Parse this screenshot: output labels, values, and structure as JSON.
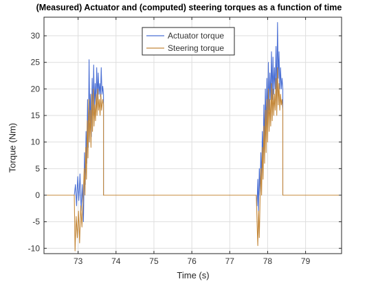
{
  "chart_data": {
    "type": "line",
    "title": "(Measured) Actuator and (computed) steering torques as a function of time",
    "xlabel": "Time (s)",
    "ylabel": "Torque (Nm)",
    "xlim": [
      72.1,
      79.95
    ],
    "ylim": [
      -11,
      33.5
    ],
    "xticks": [
      73,
      74,
      75,
      76,
      77,
      78,
      79
    ],
    "yticks": [
      -10,
      -5,
      0,
      5,
      10,
      15,
      20,
      25,
      30
    ],
    "grid": true,
    "legend_position": "top-center",
    "series": [
      {
        "name": "Actuator torque",
        "color": "#4a6fd4",
        "points": [
          [
            72.1,
            0
          ],
          [
            72.9,
            0
          ],
          [
            72.93,
            2
          ],
          [
            72.96,
            -2
          ],
          [
            72.99,
            3.5
          ],
          [
            73.02,
            -1
          ],
          [
            73.05,
            4
          ],
          [
            73.08,
            -3
          ],
          [
            73.11,
            2
          ],
          [
            73.14,
            -5
          ],
          [
            73.17,
            8
          ],
          [
            73.19,
            2
          ],
          [
            73.21,
            12
          ],
          [
            73.23,
            6
          ],
          [
            73.25,
            18
          ],
          [
            73.27,
            9
          ],
          [
            73.29,
            25.5
          ],
          [
            73.31,
            14
          ],
          [
            73.33,
            19
          ],
          [
            73.35,
            11
          ],
          [
            73.37,
            22
          ],
          [
            73.39,
            15
          ],
          [
            73.41,
            24.5
          ],
          [
            73.43,
            16
          ],
          [
            73.45,
            21
          ],
          [
            73.47,
            17
          ],
          [
            73.49,
            24
          ],
          [
            73.51,
            18
          ],
          [
            73.53,
            23
          ],
          [
            73.55,
            19
          ],
          [
            73.57,
            21
          ],
          [
            73.59,
            18.5
          ],
          [
            73.61,
            24
          ],
          [
            73.63,
            19
          ],
          [
            73.65,
            20.5
          ],
          [
            73.67,
            19
          ],
          [
            73.67,
            0
          ],
          [
            77.7,
            0
          ],
          [
            77.72,
            -2
          ],
          [
            77.74,
            3
          ],
          [
            77.76,
            -3
          ],
          [
            77.78,
            5
          ],
          [
            77.8,
            0
          ],
          [
            77.82,
            8
          ],
          [
            77.84,
            3
          ],
          [
            77.86,
            12
          ],
          [
            77.88,
            6
          ],
          [
            77.9,
            17
          ],
          [
            77.92,
            10
          ],
          [
            77.94,
            20
          ],
          [
            77.96,
            12
          ],
          [
            77.98,
            22
          ],
          [
            78.0,
            14
          ],
          [
            78.02,
            25
          ],
          [
            78.04,
            16
          ],
          [
            78.06,
            23
          ],
          [
            78.08,
            18
          ],
          [
            78.1,
            27
          ],
          [
            78.12,
            18
          ],
          [
            78.14,
            26
          ],
          [
            78.16,
            19
          ],
          [
            78.18,
            24
          ],
          [
            78.2,
            20
          ],
          [
            78.22,
            28
          ],
          [
            78.24,
            19
          ],
          [
            78.26,
            32.5
          ],
          [
            78.28,
            22
          ],
          [
            78.3,
            27
          ],
          [
            78.32,
            20
          ],
          [
            78.34,
            24
          ],
          [
            78.36,
            20
          ],
          [
            78.38,
            22
          ],
          [
            78.4,
            20
          ],
          [
            78.4,
            0
          ],
          [
            79.95,
            0
          ]
        ]
      },
      {
        "name": "Steering torque",
        "color": "#c4883a",
        "points": [
          [
            72.1,
            0
          ],
          [
            72.9,
            0
          ],
          [
            72.92,
            -10.5
          ],
          [
            72.95,
            -4
          ],
          [
            72.98,
            -8
          ],
          [
            73.01,
            -3
          ],
          [
            73.04,
            -9
          ],
          [
            73.07,
            -2
          ],
          [
            73.1,
            -6
          ],
          [
            73.13,
            -1
          ],
          [
            73.16,
            5
          ],
          [
            73.18,
            0
          ],
          [
            73.2,
            9
          ],
          [
            73.22,
            3
          ],
          [
            73.24,
            14
          ],
          [
            73.26,
            7
          ],
          [
            73.28,
            18
          ],
          [
            73.3,
            10
          ],
          [
            73.32,
            16
          ],
          [
            73.34,
            9
          ],
          [
            73.36,
            19
          ],
          [
            73.38,
            12
          ],
          [
            73.4,
            20
          ],
          [
            73.42,
            13
          ],
          [
            73.44,
            17
          ],
          [
            73.46,
            14
          ],
          [
            73.48,
            19
          ],
          [
            73.5,
            15
          ],
          [
            73.52,
            20
          ],
          [
            73.54,
            16
          ],
          [
            73.56,
            18
          ],
          [
            73.58,
            15
          ],
          [
            73.6,
            19
          ],
          [
            73.62,
            16
          ],
          [
            73.65,
            18
          ],
          [
            73.67,
            17
          ],
          [
            73.67,
            0
          ],
          [
            77.7,
            0
          ],
          [
            77.72,
            -5
          ],
          [
            77.74,
            -9.5
          ],
          [
            77.76,
            -3
          ],
          [
            77.78,
            -8
          ],
          [
            77.8,
            -1
          ],
          [
            77.82,
            5
          ],
          [
            77.84,
            0
          ],
          [
            77.86,
            9
          ],
          [
            77.88,
            3
          ],
          [
            77.9,
            13
          ],
          [
            77.92,
            6
          ],
          [
            77.94,
            16
          ],
          [
            77.96,
            8
          ],
          [
            77.98,
            18
          ],
          [
            78.0,
            10
          ],
          [
            78.02,
            20
          ],
          [
            78.04,
            12
          ],
          [
            78.06,
            18
          ],
          [
            78.08,
            13
          ],
          [
            78.1,
            21
          ],
          [
            78.12,
            14
          ],
          [
            78.14,
            20
          ],
          [
            78.16,
            15
          ],
          [
            78.18,
            19
          ],
          [
            78.2,
            16
          ],
          [
            78.22,
            22
          ],
          [
            78.24,
            15
          ],
          [
            78.26,
            24
          ],
          [
            78.28,
            17
          ],
          [
            78.3,
            21
          ],
          [
            78.32,
            16
          ],
          [
            78.34,
            19
          ],
          [
            78.36,
            17
          ],
          [
            78.38,
            18
          ],
          [
            78.4,
            16
          ],
          [
            78.4,
            0
          ],
          [
            79.95,
            0
          ]
        ]
      }
    ]
  }
}
